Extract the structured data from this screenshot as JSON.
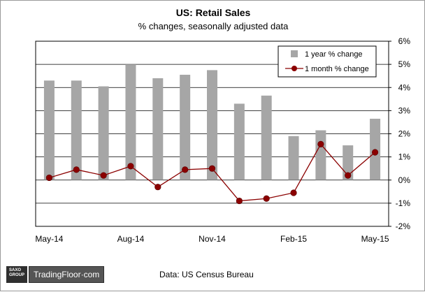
{
  "chart_data": {
    "type": "bar",
    "title": "US: Retail Sales",
    "subtitle": "% changes, seasonally adjusted data",
    "categories": [
      "May-14",
      "Jun-14",
      "Jul-14",
      "Aug-14",
      "Sep-14",
      "Oct-14",
      "Nov-14",
      "Dec-14",
      "Jan-15",
      "Feb-15",
      "Mar-15",
      "Apr-15",
      "May-15"
    ],
    "x_tick_labels": [
      "May-14",
      "Aug-14",
      "Nov-14",
      "Feb-15",
      "May-15"
    ],
    "y_tick_labels": [
      "-2%",
      "-1%",
      "0%",
      "1%",
      "2%",
      "3%",
      "4%",
      "5%",
      "6%"
    ],
    "ylim": [
      -2,
      6
    ],
    "y_axis_side": "right",
    "grid": "horizontal",
    "legend_position": "top-right",
    "series": [
      {
        "name": "1 year % change",
        "type": "bar",
        "color": "#a6a6a6",
        "values": [
          4.3,
          4.3,
          4.05,
          5.0,
          4.4,
          4.55,
          4.75,
          3.3,
          3.65,
          1.9,
          2.15,
          1.5,
          2.65
        ]
      },
      {
        "name": "1 month % change",
        "type": "line",
        "color": "#8b0000",
        "values": [
          0.1,
          0.45,
          0.2,
          0.6,
          -0.3,
          0.45,
          0.5,
          -0.9,
          -0.8,
          -0.55,
          1.55,
          0.2,
          1.2
        ]
      }
    ]
  },
  "source": "Data: US Census Bureau",
  "logo": {
    "box_line1": "SAXO",
    "box_line2": "GROUP",
    "brand": "TradingFloor·com"
  }
}
